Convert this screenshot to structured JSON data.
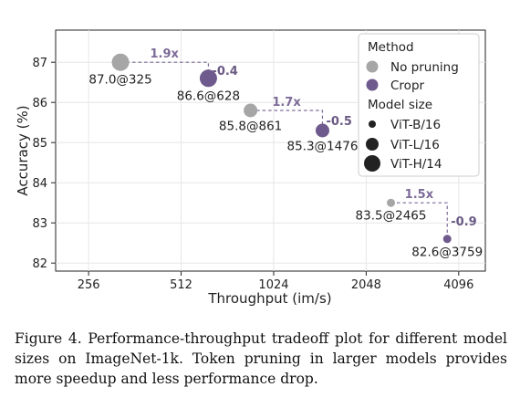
{
  "chart_data": {
    "type": "scatter",
    "xlabel": "Throughput (im/s)",
    "ylabel": "Accuracy (%)",
    "x_scale": "log2",
    "xlim": [
      200,
      5000
    ],
    "ylim": [
      81.8,
      87.8
    ],
    "x_ticks": [
      256,
      512,
      1024,
      2048,
      4096
    ],
    "y_ticks": [
      82,
      83,
      84,
      85,
      86,
      87
    ],
    "grid": true,
    "legend_position": "top-right",
    "legend": {
      "title_method": "Method",
      "methods": [
        {
          "name": "No pruning",
          "color": "#a6a6a6"
        },
        {
          "name": "Cropr",
          "color": "#6e5a8c"
        }
      ],
      "title_size": "Model size",
      "sizes": [
        "ViT-B/16",
        "ViT-L/16",
        "ViT-H/14"
      ]
    },
    "series": [
      {
        "name": "No pruning",
        "color": "#a6a6a6",
        "points": [
          {
            "model": "ViT-H/14",
            "x": 325,
            "y": 87.0,
            "label": "87.0@325"
          },
          {
            "model": "ViT-L/16",
            "x": 861,
            "y": 85.8,
            "label": "85.8@861"
          },
          {
            "model": "ViT-B/16",
            "x": 2465,
            "y": 83.5,
            "label": "83.5@2465"
          }
        ]
      },
      {
        "name": "Cropr",
        "color": "#6e5a8c",
        "points": [
          {
            "model": "ViT-H/14",
            "x": 628,
            "y": 86.6,
            "label": "86.6@628"
          },
          {
            "model": "ViT-L/16",
            "x": 1476,
            "y": 85.3,
            "label": "85.3@1476"
          },
          {
            "model": "ViT-B/16",
            "x": 3759,
            "y": 82.6,
            "label": "82.6@3759"
          }
        ]
      }
    ],
    "annotations": [
      {
        "model": "ViT-H/14",
        "speedup": "1.9x",
        "drop": "-0.4"
      },
      {
        "model": "ViT-L/16",
        "speedup": "1.7x",
        "drop": "-0.5"
      },
      {
        "model": "ViT-B/16",
        "speedup": "1.5x",
        "drop": "-0.9"
      }
    ]
  },
  "caption": "Figure 4.  Performance-throughput tradeoff plot for different model sizes on ImageNet-1k. Token pruning in larger models provides more speedup and less performance drop."
}
